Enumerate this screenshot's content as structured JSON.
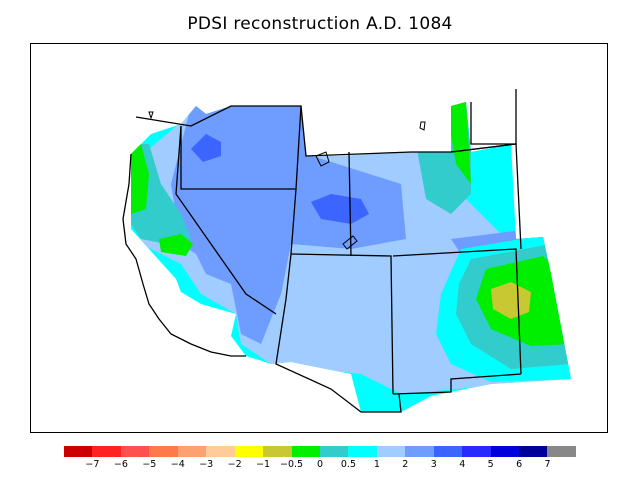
{
  "title": "PDSI reconstruction A.D. 1084",
  "legend": {
    "colors": [
      "#cc0000",
      "#ff2222",
      "#ff5050",
      "#ff7a4a",
      "#ffa070",
      "#ffcc99",
      "#ffff00",
      "#c8c832",
      "#00ee00",
      "#33cccc",
      "#00ffff",
      "#a0ccff",
      "#6e9cff",
      "#3c64ff",
      "#2828ff",
      "#0000dd",
      "#000099",
      "#888888"
    ],
    "tick_labels": [
      "−7",
      "−6",
      "−5",
      "−4",
      "−3",
      "−2",
      "−1",
      "−0.5",
      "0",
      "0.5",
      "1",
      "2",
      "3",
      "4",
      "5",
      "6",
      "7"
    ]
  },
  "map": {
    "region": "Western United States",
    "colors": {
      "c_neg05": "#c8c832",
      "c_0": "#00ee00",
      "c_05": "#33cccc",
      "c_1": "#00ffff",
      "c_2": "#a0ccff",
      "c_3": "#6e9cff",
      "c_4": "#3c64ff"
    }
  }
}
